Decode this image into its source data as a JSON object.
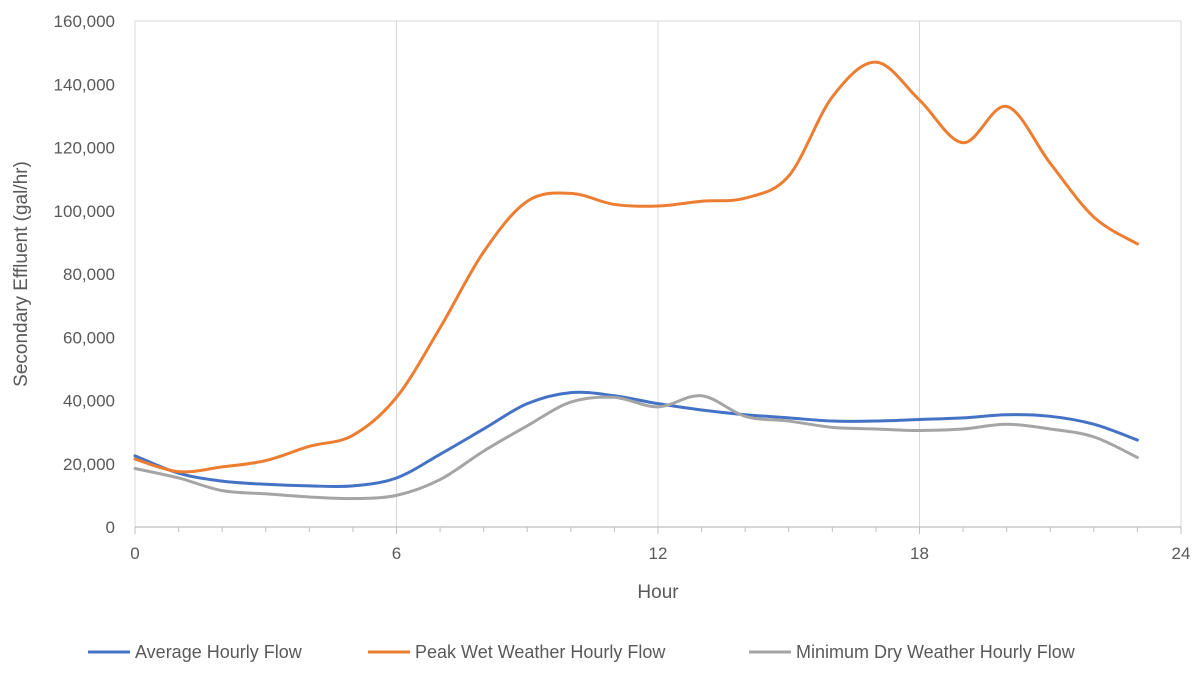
{
  "chart_data": {
    "type": "line",
    "title": "",
    "xlabel": "Hour",
    "ylabel": "Secondary Effluent (gal/hr)",
    "xlim": [
      0,
      24
    ],
    "ylim": [
      0,
      160000
    ],
    "x_ticks": [
      0,
      6,
      12,
      18,
      24
    ],
    "y_ticks": [
      0,
      20000,
      40000,
      60000,
      80000,
      100000,
      120000,
      140000,
      160000
    ],
    "y_tick_labels": [
      "0",
      "20,000",
      "40,000",
      "60,000",
      "80,000",
      "100,000",
      "120,000",
      "140,000",
      "160,000"
    ],
    "x_tick_labels": [
      "0",
      "6",
      "12",
      "18",
      "24"
    ],
    "grid": "vertical",
    "legend_position": "bottom",
    "x": [
      0,
      1,
      2,
      3,
      4,
      5,
      6,
      7,
      8,
      9,
      10,
      11,
      12,
      13,
      14,
      15,
      16,
      17,
      18,
      19,
      20,
      21,
      22,
      23
    ],
    "series": [
      {
        "name": "Average Hourly Flow",
        "color": "#4472C4",
        "values": [
          22500,
          17000,
          14500,
          13500,
          13000,
          13000,
          15500,
          23000,
          31000,
          39000,
          42500,
          41500,
          39000,
          37000,
          35500,
          34500,
          33500,
          33500,
          34000,
          34500,
          35500,
          35000,
          32500,
          27500
        ]
      },
      {
        "name": "Peak Wet Weather Hourly Flow",
        "color": "#ED7D31",
        "values": [
          21500,
          17500,
          19000,
          21000,
          25500,
          29000,
          41000,
          63000,
          87000,
          103000,
          105500,
          102000,
          101500,
          103000,
          104000,
          111000,
          136000,
          147000,
          135000,
          121500,
          133000,
          115000,
          98000,
          89500
        ]
      },
      {
        "name": "Minimum Dry Weather Hourly Flow",
        "color": "#A5A5A5",
        "values": [
          18500,
          15500,
          11500,
          10500,
          9500,
          9000,
          10000,
          15000,
          24000,
          32000,
          39500,
          41000,
          38000,
          41500,
          35000,
          33500,
          31500,
          31000,
          30500,
          31000,
          32500,
          31000,
          28500,
          22000
        ]
      }
    ]
  }
}
